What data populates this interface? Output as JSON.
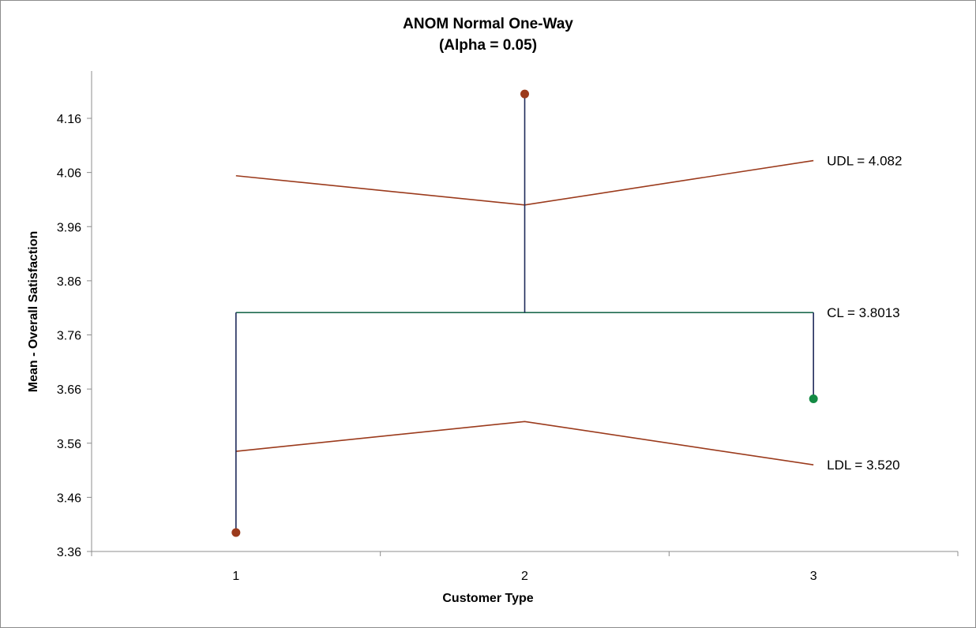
{
  "chart_data": {
    "type": "line",
    "title": "ANOM Normal One-Way",
    "subtitle": "(Alpha = 0.05)",
    "xlabel": "Customer Type",
    "ylabel": "Mean - Overall Satisfaction",
    "categories": [
      "1",
      "2",
      "3"
    ],
    "ylim": [
      3.36,
      4.22
    ],
    "yticks": [
      "3.36",
      "3.46",
      "3.56",
      "3.66",
      "3.76",
      "3.86",
      "3.96",
      "4.06",
      "4.16"
    ],
    "series": [
      {
        "role": "udl",
        "values": [
          4.054,
          4.0,
          4.082
        ]
      },
      {
        "role": "ldl",
        "values": [
          3.545,
          3.6,
          3.52
        ]
      },
      {
        "role": "means",
        "values": [
          3.395,
          4.205,
          3.642
        ]
      }
    ],
    "center_line": 3.8013,
    "labels": {
      "udl": "UDL = 4.082",
      "cl": "CL = 3.8013",
      "ldl": "LDL = 3.520"
    },
    "grid": false,
    "legend": "none",
    "colors": {
      "limit": "#9b3a1c",
      "center": "#1e6b4f",
      "stem": "#1f2a5a",
      "point_out": "#9b3a1c",
      "point_in": "#138a44",
      "axis": "#8c8c8c"
    }
  }
}
